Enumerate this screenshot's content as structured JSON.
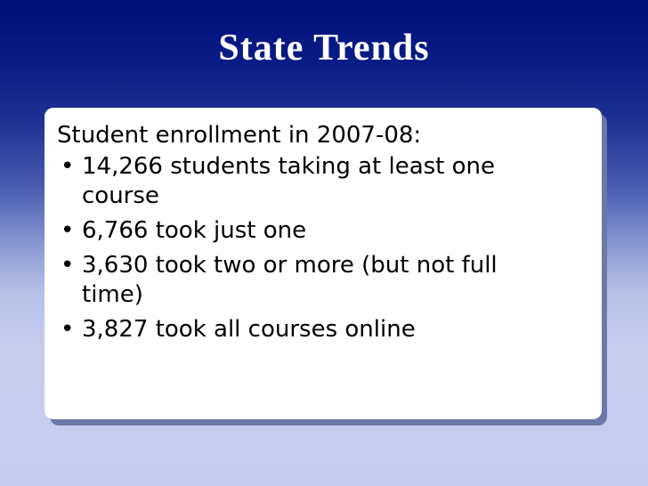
{
  "slide": {
    "title": "State Trends",
    "intro": "Student enrollment in 2007-08:",
    "bullet_glyph": "•",
    "items": [
      "14,266 students taking at least one course",
      "6,766 took just one",
      "3,630 took two or more (but not full time)",
      "3,827 took all courses online"
    ]
  },
  "colors": {
    "header_bg": "#00107a",
    "lower_bg": "#c5cbef",
    "title_text": "#ffffff",
    "card_bg": "#ffffff"
  }
}
